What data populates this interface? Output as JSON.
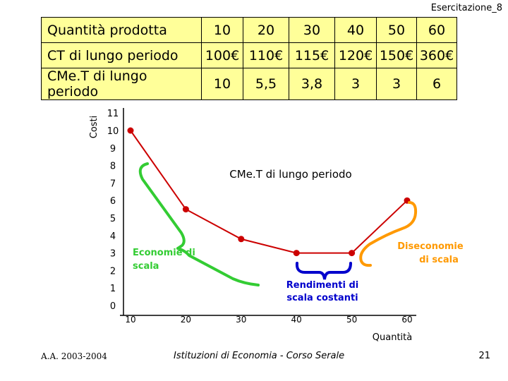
{
  "header": {
    "slide_label": "Esercitazione_8"
  },
  "table": {
    "rows": [
      {
        "label": "Quantità prodotta",
        "values": [
          "10",
          "20",
          "30",
          "40",
          "50",
          "60"
        ]
      },
      {
        "label": "CT di lungo periodo",
        "values": [
          "100€",
          "110€",
          "115€",
          "120€",
          "150€",
          "360€"
        ]
      },
      {
        "label": "CMe.T di lungo periodo",
        "values": [
          "10",
          "5,5",
          "3,8",
          "3",
          "3",
          "6"
        ]
      }
    ]
  },
  "chart_data": {
    "type": "line",
    "ylabel": "Costi",
    "xlabel": "Quantità",
    "series_label": "CMe.T di lungo periodo",
    "x": [
      10,
      20,
      30,
      40,
      50,
      60
    ],
    "y": [
      10,
      5.5,
      3.8,
      3,
      3,
      6
    ],
    "xticks": [
      "10",
      "20",
      "30",
      "40",
      "50",
      "60"
    ],
    "yticks": [
      "0",
      "1",
      "2",
      "3",
      "4",
      "5",
      "6",
      "7",
      "8",
      "9",
      "10",
      "11"
    ],
    "xlim": [
      10,
      60
    ],
    "ylim": [
      0,
      11
    ],
    "line_color": "#cc0000",
    "annotations": [
      {
        "text": "Economie di scala",
        "color": "#33cc33"
      },
      {
        "text": "Rendimenti di scala costanti",
        "color": "#0000cc"
      },
      {
        "text": "Diseconomie di scala",
        "color": "#ff9900"
      }
    ]
  },
  "footer": {
    "left": "A.A. 2003-2004",
    "center": "Istituzioni di Economia - Corso Serale",
    "page": "21"
  }
}
